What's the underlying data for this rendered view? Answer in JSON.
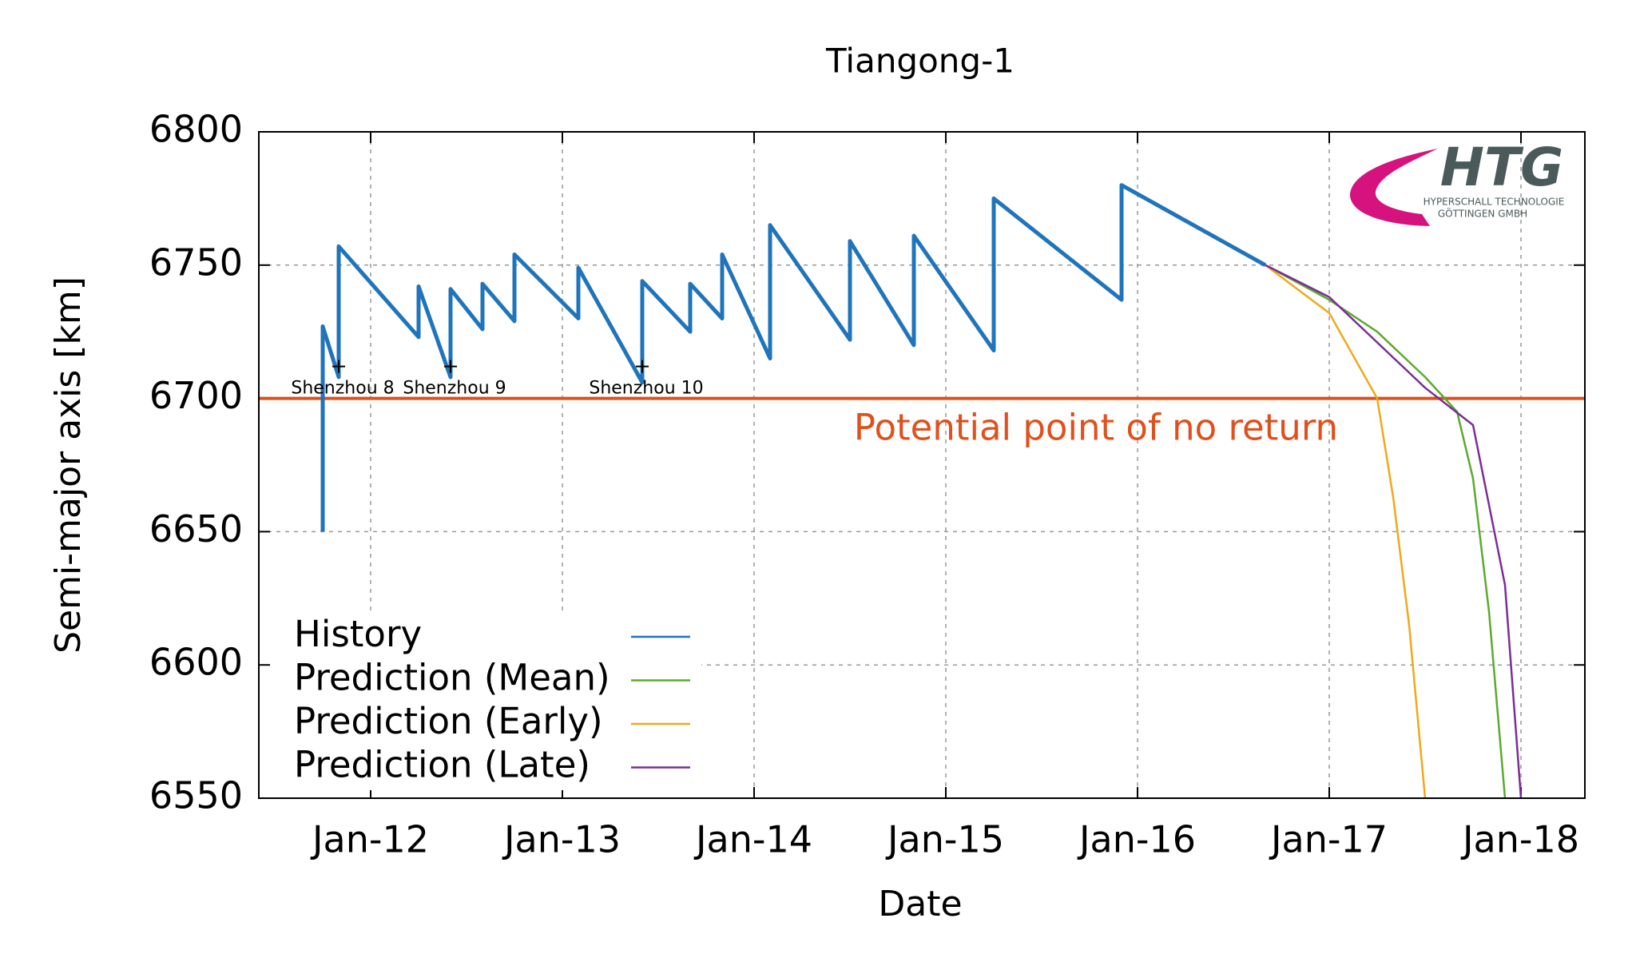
{
  "chart_data": {
    "type": "line",
    "title": "Tiangong-1",
    "xlabel": "Date",
    "ylabel": "Semi-major axis [km]",
    "xlim": [
      "2011-06",
      "2018-05"
    ],
    "ylim": [
      6550,
      6800
    ],
    "xticks": [
      {
        "value": "2012-01",
        "label": "Jan-12"
      },
      {
        "value": "2013-01",
        "label": "Jan-13"
      },
      {
        "value": "2014-01",
        "label": "Jan-14"
      },
      {
        "value": "2015-01",
        "label": "Jan-15"
      },
      {
        "value": "2016-01",
        "label": "Jan-16"
      },
      {
        "value": "2017-01",
        "label": "Jan-17"
      },
      {
        "value": "2018-01",
        "label": "Jan-18"
      }
    ],
    "yticks": [
      6550,
      6600,
      6650,
      6700,
      6750,
      6800
    ],
    "grid": true,
    "legend": "lower left",
    "series": [
      {
        "name": "History",
        "color": "#1f74bc",
        "x": [
          "2011-10",
          "2011-10",
          "2011-11",
          "2011-11",
          "2012-04",
          "2012-04",
          "2012-06",
          "2012-06",
          "2012-08",
          "2012-08",
          "2012-10",
          "2012-10",
          "2013-02",
          "2013-02",
          "2013-06",
          "2013-06",
          "2013-09",
          "2013-09",
          "2013-11",
          "2013-11",
          "2014-02",
          "2014-02",
          "2014-07",
          "2014-07",
          "2014-11",
          "2014-11",
          "2015-04",
          "2015-04",
          "2015-12",
          "2015-12",
          "2016-09"
        ],
        "values": [
          6650,
          6727,
          6708,
          6757,
          6723,
          6742,
          6708,
          6741,
          6726,
          6743,
          6729,
          6754,
          6730,
          6749,
          6706,
          6744,
          6725,
          6743,
          6730,
          6754,
          6715,
          6765,
          6722,
          6759,
          6720,
          6761,
          6718,
          6775,
          6737,
          6780,
          6750
        ]
      },
      {
        "name": "Prediction (Mean)",
        "color": "#5aab2c",
        "x": [
          "2016-09",
          "2017-01",
          "2017-04",
          "2017-07",
          "2017-09",
          "2017-10",
          "2017-11",
          "2017-12"
        ],
        "values": [
          6750,
          6737,
          6725,
          6708,
          6695,
          6670,
          6620,
          6550
        ]
      },
      {
        "name": "Prediction (Early)",
        "color": "#f0a818",
        "x": [
          "2016-09",
          "2017-01",
          "2017-04",
          "2017-05",
          "2017-06",
          "2017-07"
        ],
        "values": [
          6750,
          6732,
          6700,
          6663,
          6615,
          6550
        ]
      },
      {
        "name": "Prediction (Late)",
        "color": "#7b2d96",
        "x": [
          "2016-09",
          "2017-01",
          "2017-07",
          "2017-10",
          "2017-11",
          "2017-12",
          "2018-01"
        ],
        "values": [
          6750,
          6738,
          6704,
          6690,
          6660,
          6630,
          6550
        ]
      }
    ],
    "hline": {
      "value": 6700,
      "label": "Potential point of no return",
      "color": "#e0501c"
    },
    "annotations": [
      {
        "text": "Shenzhou 8",
        "x": "2011-11",
        "y": 6712
      },
      {
        "text": "Shenzhou 9",
        "x": "2012-06",
        "y": 6712
      },
      {
        "text": "Shenzhou 10",
        "x": "2013-06",
        "y": 6712
      }
    ]
  },
  "logo": {
    "mark": "HTG",
    "line1": "HYPERSCHALL TECHNOLOGIE",
    "line2": "GÖTTINGEN GMBH"
  }
}
